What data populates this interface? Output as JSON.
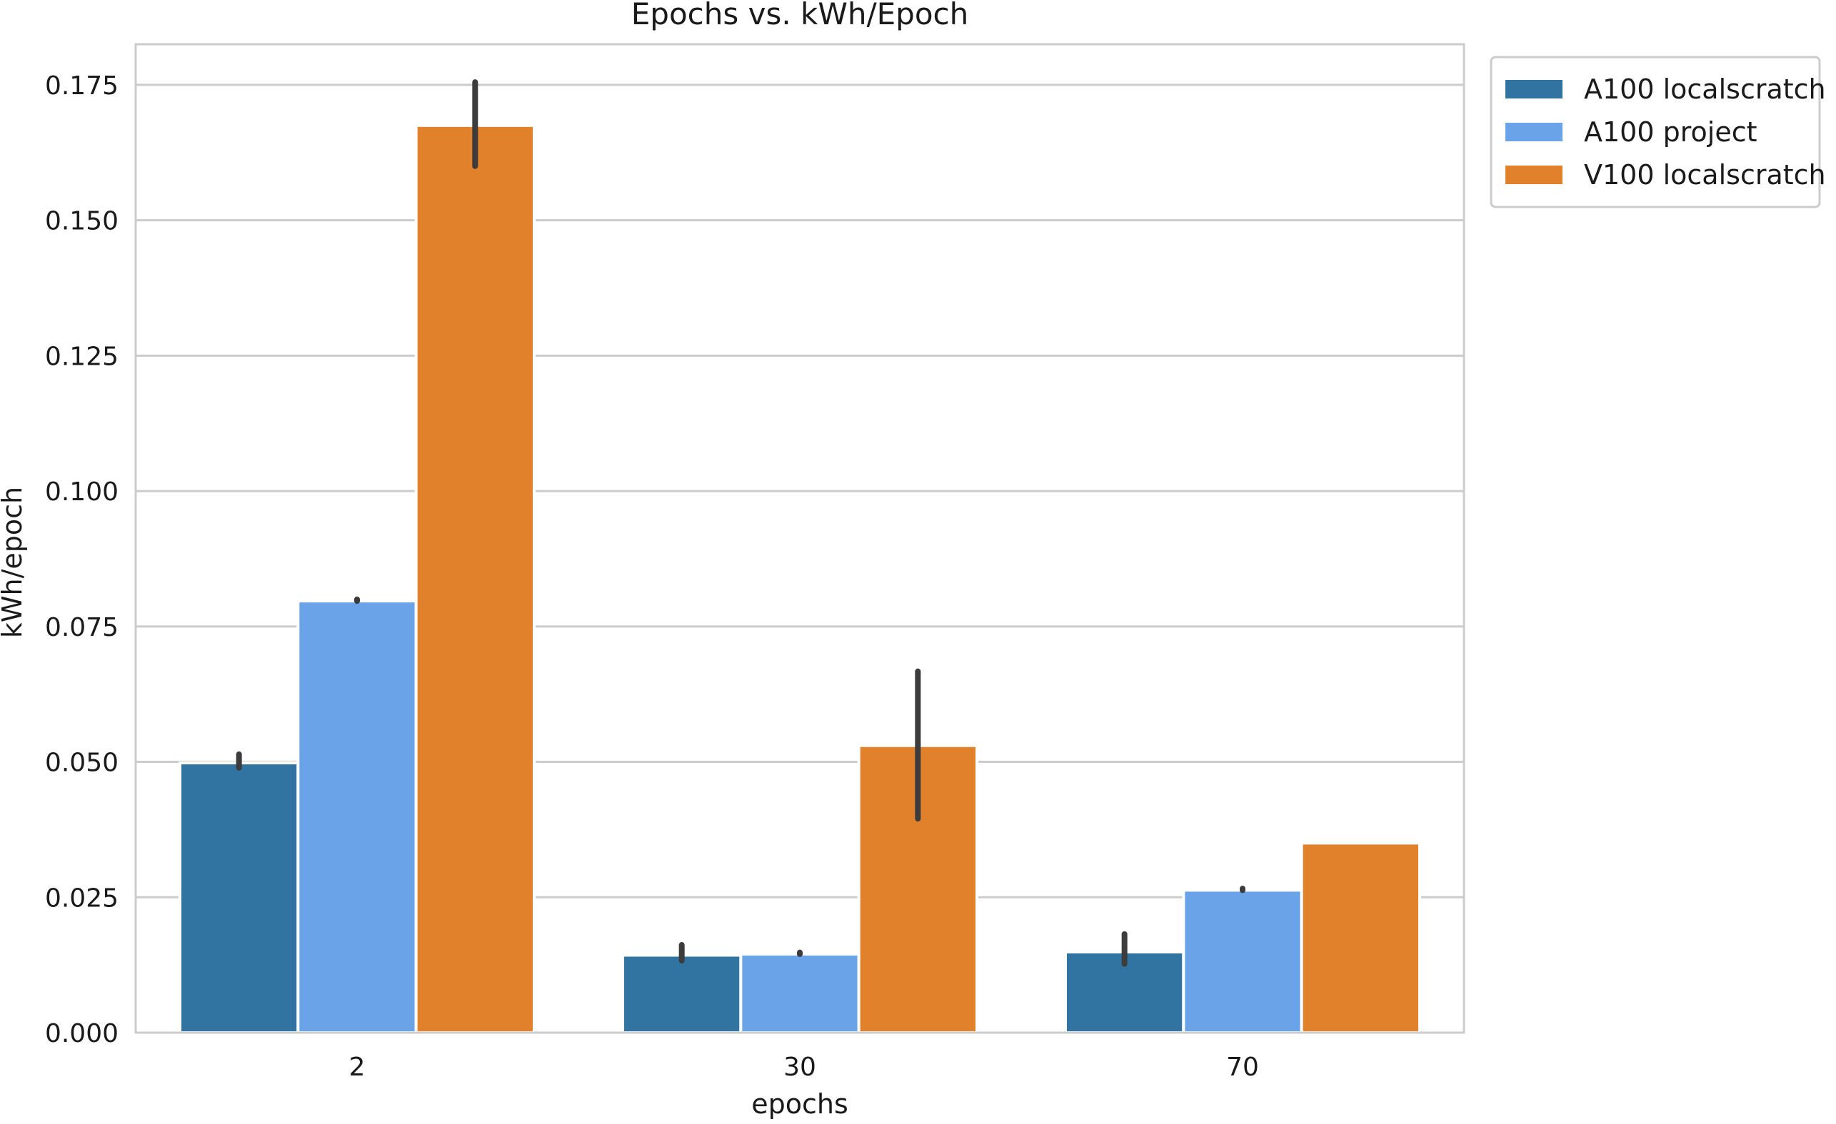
{
  "chart_data": {
    "type": "bar",
    "title": "Epochs vs. kWh/Epoch",
    "xlabel": "epochs",
    "ylabel": "kWh/epoch",
    "categories": [
      "2",
      "30",
      "70"
    ],
    "ylim": [
      0,
      0.1825
    ],
    "yticks": [
      "0.000",
      "0.025",
      "0.050",
      "0.075",
      "0.100",
      "0.125",
      "0.150",
      "0.175"
    ],
    "grid": true,
    "legend_position": "outside top-right",
    "series": [
      {
        "name": "A100 localscratch",
        "color": "#3274a1",
        "values": [
          0.0498,
          0.0143,
          0.0149
        ],
        "error_low": [
          0.0489,
          0.0133,
          0.0127
        ],
        "error_high": [
          0.0514,
          0.0162,
          0.0182
        ]
      },
      {
        "name": "A100 project",
        "color": "#6aa3e8",
        "values": [
          0.0797,
          0.0145,
          0.0263
        ],
        "error_low": [
          0.0797,
          0.0145,
          0.0263
        ],
        "error_high": [
          0.08,
          0.0148,
          0.0266
        ]
      },
      {
        "name": "V100 localscratch",
        "color": "#e1812c",
        "values": [
          0.1675,
          0.053,
          0.035
        ],
        "error_low": [
          0.16,
          0.0395,
          0.035
        ],
        "error_high": [
          0.1755,
          0.0667,
          0.035
        ]
      }
    ]
  }
}
